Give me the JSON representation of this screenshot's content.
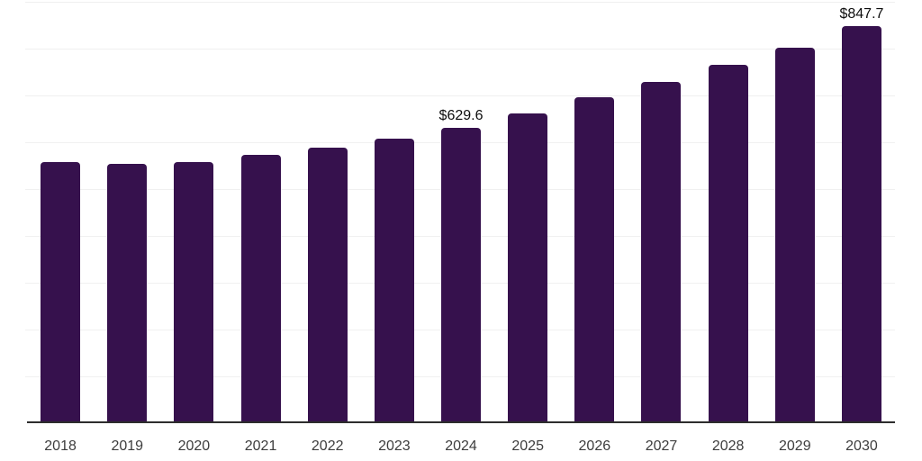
{
  "chart_data": {
    "type": "bar",
    "categories": [
      "2018",
      "2019",
      "2020",
      "2021",
      "2022",
      "2023",
      "2024",
      "2025",
      "2026",
      "2027",
      "2028",
      "2029",
      "2030"
    ],
    "values": [
      556,
      552,
      556,
      571,
      588,
      606,
      629.6,
      661,
      696,
      729,
      765,
      802,
      847.7
    ],
    "data_labels": [
      null,
      null,
      null,
      null,
      null,
      null,
      "$629.6",
      null,
      null,
      null,
      null,
      null,
      "$847.7"
    ],
    "title": "",
    "xlabel": "",
    "ylabel": "",
    "ylim": [
      0,
      900
    ],
    "gridline_interval": 100,
    "grid": "horizontal only, y-axis tick labels not shown",
    "legend": "none",
    "bar_color": "#36114D",
    "styles": {
      "grid_color": "#f0f0f0",
      "axis_color": "#2d2d2d",
      "tick_label_color": "#3d3d3d",
      "data_label_color": "#0d0d0d",
      "background": "#ffffff"
    }
  }
}
